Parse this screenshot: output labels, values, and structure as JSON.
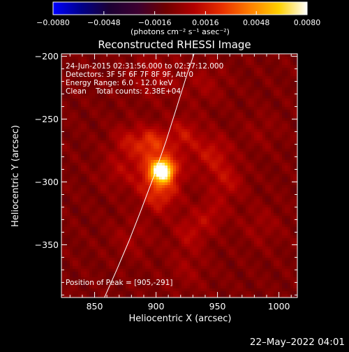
{
  "chart_data": {
    "type": "heatmap",
    "title": "Reconstructed RHESSI Image",
    "xlabel": "Heliocentric X (arcsec)",
    "ylabel": "Heliocentric Y (arcsec)",
    "xlim": [
      823,
      1015
    ],
    "ylim": [
      -392,
      -198
    ],
    "x_ticks": [
      850,
      900,
      950,
      1000
    ],
    "x_tick_labels": [
      "850",
      "900",
      "950",
      "1000"
    ],
    "y_ticks": [
      -200,
      -250,
      -300,
      -350
    ],
    "y_tick_labels": [
      "−200",
      "−250",
      "−300",
      "−350"
    ],
    "colorbar": {
      "range": [
        -0.008,
        0.008
      ],
      "tick_values": [
        -0.008,
        -0.0048,
        -0.0016,
        0.0016,
        0.0048,
        0.008
      ],
      "tick_labels": [
        "−0.0080",
        "−0.0048",
        "−0.0016",
        "0.0016",
        "0.0048",
        "0.0080"
      ],
      "units": "(photons cm⁻² s⁻¹ asec⁻²)",
      "colormap": [
        "#0000ff",
        "#00008a",
        "#1c0033",
        "#3c0030",
        "#700000",
        "#b20000",
        "#e83000",
        "#ff8000",
        "#ffd000",
        "#ffffff"
      ]
    },
    "annotations": [
      "24-Jun-2015 02:31:56.000 to 02:37:12.000",
      "Detectors: 3F 5F 6F 7F 8F 9F, Att 0",
      "Energy Range: 6.0 - 12.0 keV",
      "Clean    Total counts: 2.38E+04"
    ],
    "peak": {
      "label": "Position of Peak = [905,-291]",
      "x": 905,
      "y": -291
    },
    "limb": [
      [
        858,
        -392
      ],
      [
        868,
        -370
      ],
      [
        878,
        -347
      ],
      [
        888,
        -322
      ],
      [
        898,
        -296
      ],
      [
        908,
        -268
      ],
      [
        917,
        -240
      ],
      [
        925,
        -215
      ],
      [
        931,
        -198
      ]
    ],
    "emission_sources": [
      {
        "x": 905,
        "y": -291,
        "peak": 0.008,
        "sigma": 6
      },
      {
        "x": 902,
        "y": -292,
        "peak": 0.003,
        "sigma": 14
      },
      {
        "x": 897,
        "y": -268,
        "peak": 0.0024,
        "sigma": 8
      },
      {
        "x": 903,
        "y": -312,
        "peak": 0.0018,
        "sigma": 10
      },
      {
        "x": 878,
        "y": -268,
        "peak": 0.0017,
        "sigma": 10
      },
      {
        "x": 922,
        "y": -262,
        "peak": 0.0018,
        "sigma": 10
      },
      {
        "x": 946,
        "y": -278,
        "peak": 0.0019,
        "sigma": 11
      },
      {
        "x": 958,
        "y": -300,
        "peak": 0.0016,
        "sigma": 10
      },
      {
        "x": 945,
        "y": -325,
        "peak": 0.0014,
        "sigma": 9
      },
      {
        "x": 928,
        "y": -340,
        "peak": 0.0015,
        "sigma": 10
      },
      {
        "x": 868,
        "y": -292,
        "peak": 0.001,
        "sigma": 10
      },
      {
        "x": 900,
        "y": -215,
        "peak": 0.0011,
        "sigma": 14
      },
      {
        "x": 940,
        "y": -222,
        "peak": 0.0009,
        "sigma": 12
      },
      {
        "x": 880,
        "y": -345,
        "peak": 0.0009,
        "sigma": 12
      },
      {
        "x": 985,
        "y": -335,
        "peak": 0.0008,
        "sigma": 12
      },
      {
        "x": 985,
        "y": -260,
        "peak": 0.0006,
        "sigma": 10
      },
      {
        "x": 925,
        "y": -370,
        "peak": 0.0008,
        "sigma": 12
      }
    ]
  },
  "footer": {
    "date": "22–May–2022 04:01"
  }
}
